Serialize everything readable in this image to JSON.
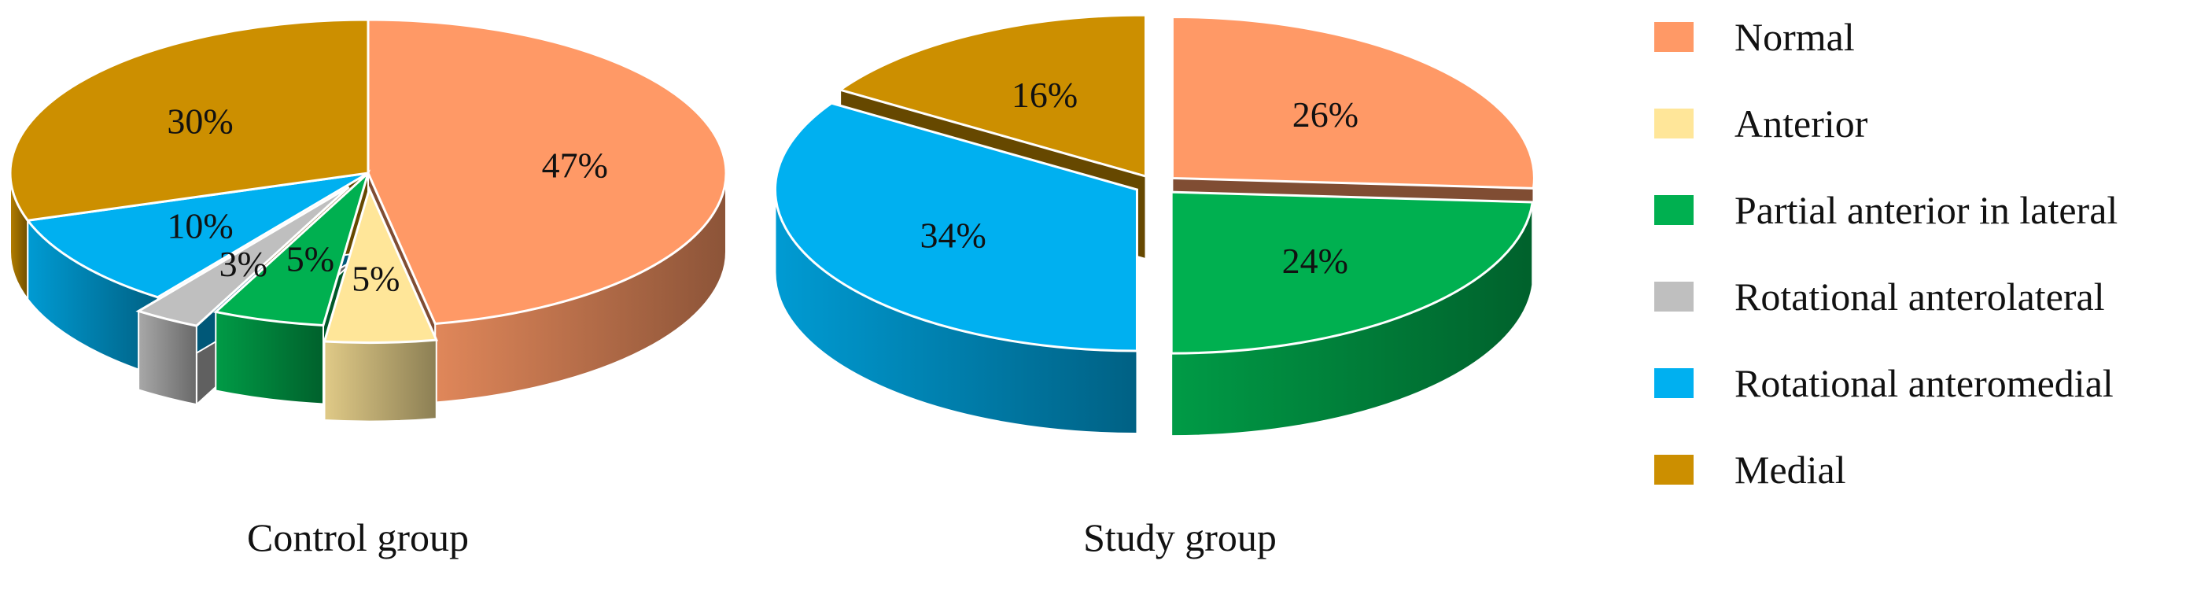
{
  "legend": {
    "entries": [
      {
        "label": "Normal",
        "color": "#FF9966"
      },
      {
        "label": "Anterior",
        "color": "#FFE699"
      },
      {
        "label": "Partial anterior in lateral",
        "color": "#00B050"
      },
      {
        "label": "Rotational anterolateral",
        "color": "#BFBFBF"
      },
      {
        "label": "Rotational anteromedial",
        "color": "#00B0F0"
      },
      {
        "label": "Medial",
        "color": "#CC8F00"
      }
    ]
  },
  "chart_data": [
    {
      "type": "pie",
      "style": "3d-exploded",
      "title": "Control group",
      "categories": [
        "Normal",
        "Anterior",
        "Partial anterior in lateral",
        "Rotational anterolateral",
        "Rotational anteromedial",
        "Medial"
      ],
      "values": [
        47,
        5,
        5,
        3,
        10,
        30
      ],
      "labels": [
        "47%",
        "5%",
        "5%",
        "3%",
        "10%",
        "30%"
      ],
      "exploded": [
        "Anterior",
        "Rotational anterolateral"
      ],
      "colors": [
        "#FF9966",
        "#FFE699",
        "#00B050",
        "#BFBFBF",
        "#00B0F0",
        "#CC8F00"
      ]
    },
    {
      "type": "pie",
      "style": "3d-exploded",
      "title": "Study group",
      "categories": [
        "Normal",
        "Partial anterior in lateral",
        "Rotational anteromedial",
        "Medial"
      ],
      "values": [
        26,
        24,
        34,
        16
      ],
      "labels": [
        "26%",
        "24%",
        "34%",
        "16%"
      ],
      "exploded": [
        "Normal",
        "Partial anterior in lateral",
        "Rotational anteromedial",
        "Medial"
      ],
      "colors": [
        "#FF9966",
        "#00B050",
        "#00B0F0",
        "#CC8F00"
      ]
    }
  ]
}
